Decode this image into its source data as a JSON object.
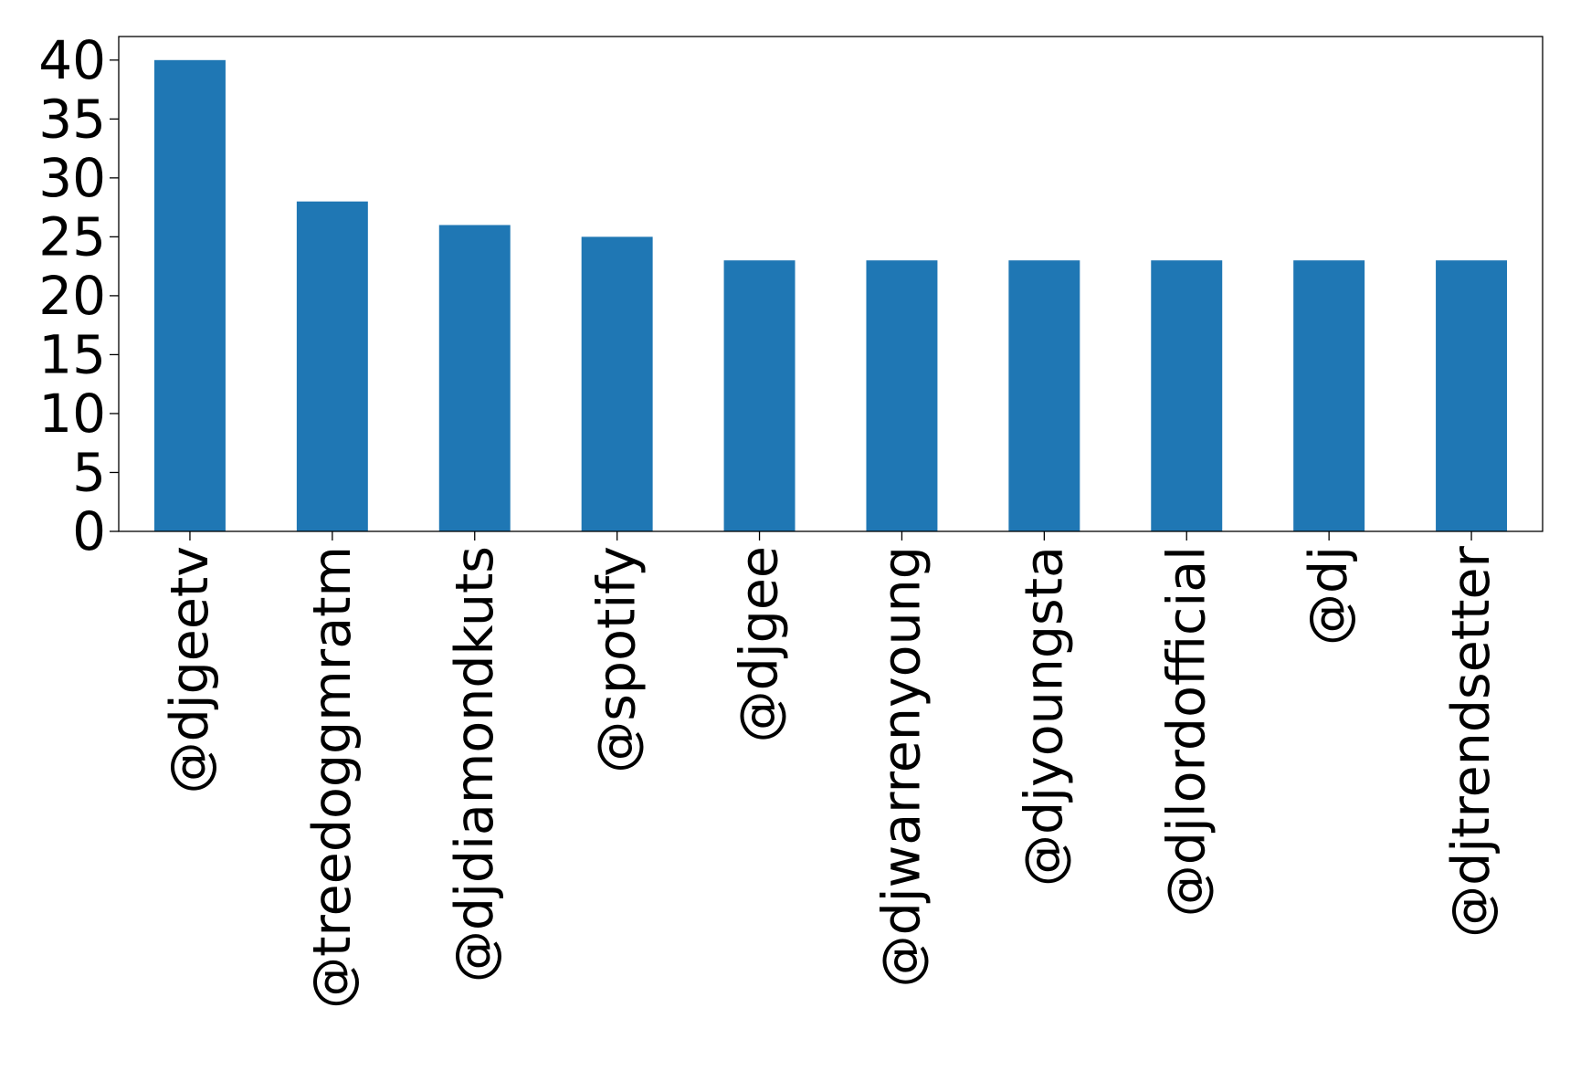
{
  "chart_data": {
    "type": "bar",
    "title": "",
    "xlabel": "",
    "ylabel": "",
    "categories": [
      "@djgeetv",
      "@treedoggmratm",
      "@djdiamondkuts",
      "@spotify",
      "@djgee",
      "@djwarrenyoung",
      "@djyoungsta",
      "@djlordofficial",
      "@dj",
      "@djtrendsetter"
    ],
    "values": [
      40,
      28,
      26,
      25,
      23,
      23,
      23,
      23,
      23,
      23
    ],
    "ylim": [
      0,
      42
    ],
    "yticks": [
      0,
      5,
      10,
      15,
      20,
      25,
      30,
      35,
      40
    ],
    "ytick_labels": [
      "0",
      "5",
      "10",
      "15",
      "20",
      "25",
      "30",
      "35",
      "40"
    ],
    "grid": false,
    "legend": "none",
    "bar_color": "#1f77b4"
  }
}
